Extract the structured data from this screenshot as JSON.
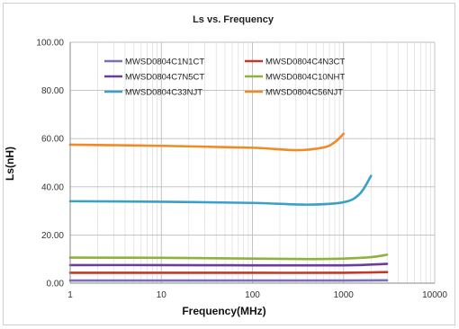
{
  "chart_data": {
    "type": "line",
    "title": "Ls vs. Frequency",
    "xlabel": "Frequency(MHz)",
    "ylabel": "Ls(nH)",
    "x_scale": "log",
    "xlim": [
      1,
      10000
    ],
    "ylim": [
      0,
      100
    ],
    "x_ticks": [
      1,
      10,
      100,
      1000,
      10000
    ],
    "x_tick_labels": [
      "1",
      "10",
      "100",
      "1000",
      "10000"
    ],
    "y_ticks": [
      0,
      20,
      40,
      60,
      80,
      100
    ],
    "y_tick_labels": [
      "0.00",
      "20.00",
      "40.00",
      "60.00",
      "80.00",
      "100.00"
    ],
    "grid": true,
    "legend": "top-left",
    "series": [
      {
        "name": "MWSD0804C1N1CT",
        "color": "#7b6fb8",
        "x": [
          1,
          10,
          100,
          1000,
          3000
        ],
        "y": [
          1.1,
          1.1,
          1.1,
          1.1,
          1.2
        ]
      },
      {
        "name": "MWSD0804C4N3CT",
        "color": "#c0392b",
        "x": [
          1,
          10,
          100,
          1000,
          3000
        ],
        "y": [
          4.3,
          4.3,
          4.3,
          4.3,
          4.6
        ]
      },
      {
        "name": "MWSD0804C7N5CT",
        "color": "#6a3d9a",
        "x": [
          1,
          10,
          100,
          1000,
          2000,
          3000
        ],
        "y": [
          7.5,
          7.5,
          7.4,
          7.4,
          7.7,
          8.0
        ]
      },
      {
        "name": "MWSD0804C10NHT",
        "color": "#8db33c",
        "x": [
          1,
          10,
          100,
          400,
          1000,
          2000,
          3000
        ],
        "y": [
          10.6,
          10.5,
          10.2,
          10.0,
          10.2,
          10.8,
          11.8
        ]
      },
      {
        "name": "MWSD0804C33NJT",
        "color": "#3aa0c8",
        "x": [
          1,
          10,
          100,
          400,
          1000,
          1500,
          2000
        ],
        "y": [
          34.0,
          33.8,
          33.3,
          32.6,
          33.6,
          37.0,
          44.5
        ]
      },
      {
        "name": "MWSD0804C56NJT",
        "color": "#f08a24",
        "x": [
          1,
          10,
          100,
          300,
          600,
          800,
          1000
        ],
        "y": [
          57.5,
          57.0,
          56.2,
          55.2,
          56.3,
          58.5,
          62.0
        ]
      }
    ]
  }
}
